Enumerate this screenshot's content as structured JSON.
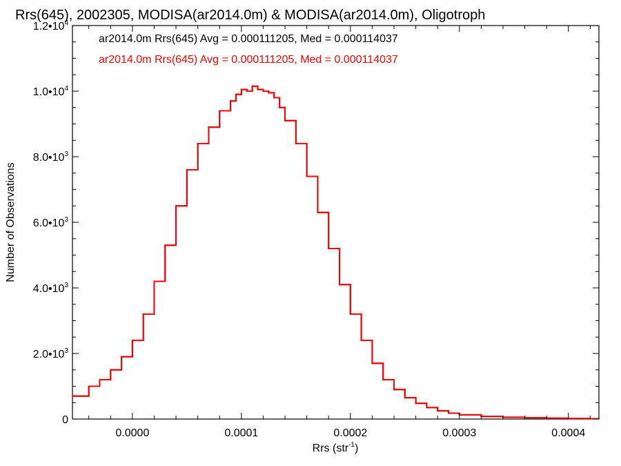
{
  "colors": {
    "background": "#ffffff",
    "axis": "#000000",
    "series1": "#000000",
    "series2": "#ff0000"
  },
  "chart_data": {
    "type": "line",
    "step": true,
    "title": "Rrs(645), 2002305, MODISA(ar2014.0m) & MODISA(ar2014.0m), Oligotroph",
    "xlabel": "Rrs (str",
    "xlabel_sup": "-1",
    "xlabel_end": ")",
    "ylabel": "Number of Observations",
    "xlim": [
      -5.5e-05,
      0.000428
    ],
    "ylim": [
      0,
      12000
    ],
    "grid": false,
    "legend_position": "top-left",
    "x_ticks": [
      {
        "value": 0.0,
        "label": "0.0000"
      },
      {
        "value": 0.0001,
        "label": "0.0001"
      },
      {
        "value": 0.0002,
        "label": "0.0002"
      },
      {
        "value": 0.0003,
        "label": "0.0003"
      },
      {
        "value": 0.0004,
        "label": "0.0004"
      }
    ],
    "y_ticks": [
      {
        "value": 0,
        "mant": "0",
        "exp": ""
      },
      {
        "value": 2000,
        "mant": "2.0•10",
        "exp": "3"
      },
      {
        "value": 4000,
        "mant": "4.0•10",
        "exp": "3"
      },
      {
        "value": 6000,
        "mant": "6.0•10",
        "exp": "3"
      },
      {
        "value": 8000,
        "mant": "8.0•10",
        "exp": "3"
      },
      {
        "value": 10000,
        "mant": "1.0•10",
        "exp": "4"
      },
      {
        "value": 12000,
        "mant": "1.2•10",
        "exp": "4"
      }
    ],
    "annotations": [
      "ar2014.0m Rrs(645) Avg = 0.000111205, Med = 0.000114037",
      "ar2014.0m Rrs(645) Avg = 0.000111205, Med = 0.000114037"
    ],
    "x": [
      -5.5e-05,
      -4e-05,
      -3e-05,
      -2e-05,
      -1e-05,
      0.0,
      1e-05,
      2e-05,
      3e-05,
      4e-05,
      5e-05,
      6e-05,
      7e-05,
      8e-05,
      9e-05,
      9.5e-05,
      0.0001,
      0.000105,
      0.00011,
      0.000115,
      0.00012,
      0.000125,
      0.00013,
      0.000135,
      0.00014,
      0.00015,
      0.00016,
      0.00017,
      0.00018,
      0.00019,
      0.0002,
      0.00021,
      0.00022,
      0.00023,
      0.00024,
      0.00025,
      0.00026,
      0.00027,
      0.00028,
      0.00029,
      0.0003,
      0.00032,
      0.00034,
      0.00036,
      0.00038,
      0.0004,
      0.00042,
      0.000428
    ],
    "series": [
      {
        "values": [
          700,
          1000,
          1200,
          1500,
          1900,
          2400,
          3200,
          4200,
          5300,
          6500,
          7600,
          8400,
          8900,
          9400,
          9700,
          9900,
          10050,
          10000,
          10150,
          10050,
          10000,
          9950,
          9800,
          9500,
          9100,
          8400,
          7400,
          6300,
          5200,
          4100,
          3200,
          2400,
          1700,
          1200,
          900,
          650,
          480,
          350,
          250,
          180,
          130,
          80,
          55,
          40,
          25,
          15,
          10,
          8
        ]
      },
      {
        "values": [
          700,
          1000,
          1200,
          1500,
          1900,
          2400,
          3200,
          4200,
          5300,
          6500,
          7600,
          8400,
          8900,
          9400,
          9700,
          9900,
          10050,
          10000,
          10150,
          10050,
          10000,
          9950,
          9800,
          9500,
          9100,
          8400,
          7400,
          6300,
          5200,
          4100,
          3200,
          2400,
          1700,
          1200,
          900,
          650,
          480,
          350,
          250,
          180,
          130,
          80,
          55,
          40,
          25,
          15,
          10,
          8
        ]
      }
    ]
  }
}
